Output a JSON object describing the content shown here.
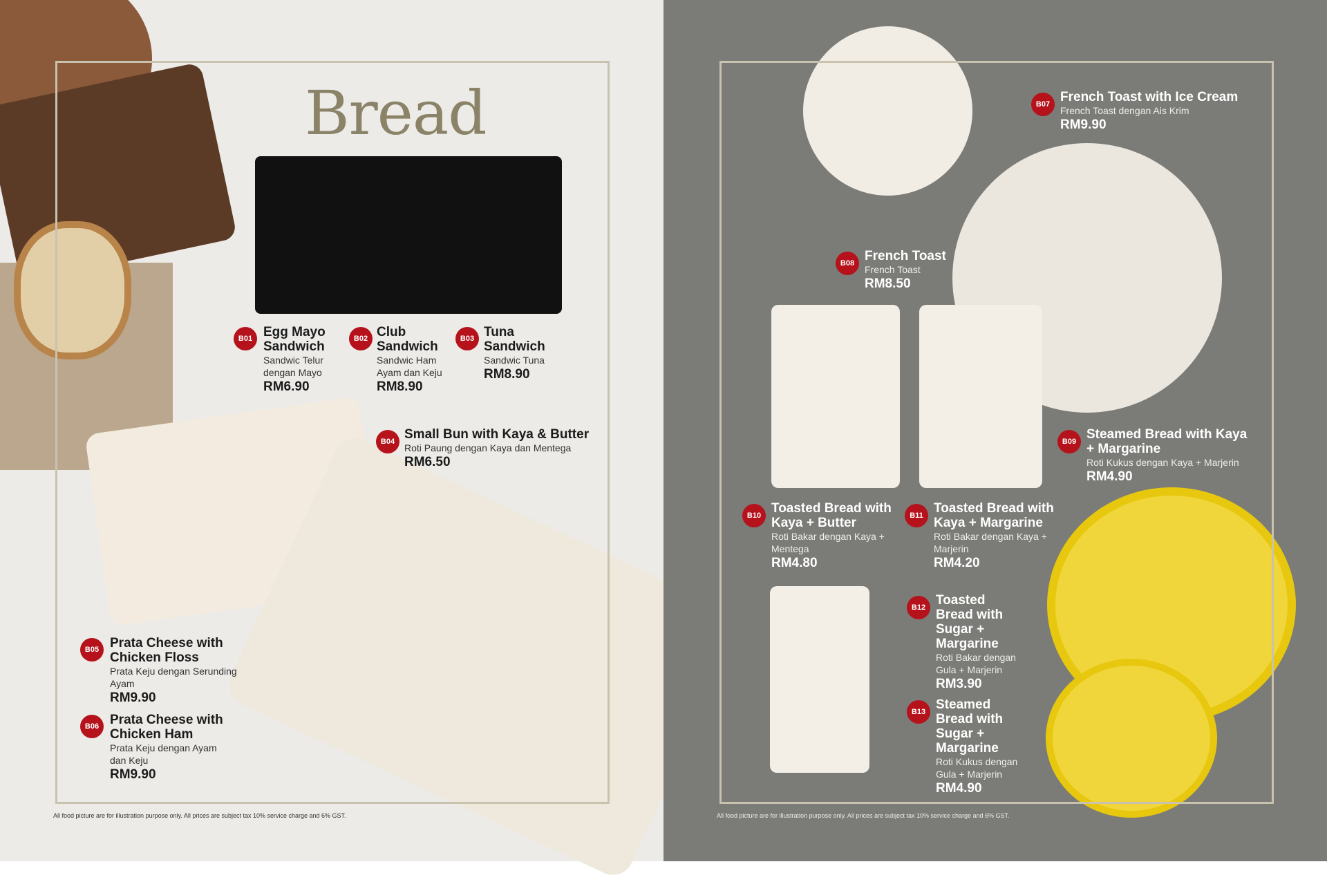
{
  "title": "Bread",
  "footnote": "All food picture are for illustration purpose only. All prices are subject tax 10% service charge and 6% GST.",
  "colors": {
    "badge": "#b5121b",
    "title": "#8a8368",
    "right_bg": "#7b7b77",
    "left_bg": "#ecebe7"
  },
  "items": [
    {
      "code": "B01",
      "name": "Egg Mayo Sandwich",
      "sub": "Sandwic Telur dengan Mayo",
      "price": "RM6.90"
    },
    {
      "code": "B02",
      "name": "Club Sandwich",
      "sub": "Sandwic Ham Ayam dan Keju",
      "price": "RM8.90"
    },
    {
      "code": "B03",
      "name": "Tuna Sandwich",
      "sub": "Sandwic Tuna",
      "price": "RM8.90"
    },
    {
      "code": "B04",
      "name": "Small Bun with Kaya & Butter",
      "sub": "Roti Paung dengan Kaya dan Mentega",
      "price": "RM6.50"
    },
    {
      "code": "B05",
      "name": "Prata Cheese with Chicken Floss",
      "sub": "Prata Keju dengan Serunding Ayam",
      "price": "RM9.90"
    },
    {
      "code": "B06",
      "name": "Prata Cheese with Chicken Ham",
      "sub": "Prata Keju dengan Ayam dan Keju",
      "price": "RM9.90"
    },
    {
      "code": "B07",
      "name": "French Toast with Ice Cream",
      "sub": "French Toast dengan Ais Krim",
      "price": "RM9.90"
    },
    {
      "code": "B08",
      "name": "French Toast",
      "sub": "French Toast",
      "price": "RM8.50"
    },
    {
      "code": "B09",
      "name": "Steamed Bread with Kaya + Margarine",
      "sub": "Roti Kukus dengan Kaya + Marjerin",
      "price": "RM4.90"
    },
    {
      "code": "B10",
      "name": "Toasted Bread with Kaya + Butter",
      "sub": "Roti Bakar dengan Kaya + Mentega",
      "price": "RM4.80"
    },
    {
      "code": "B11",
      "name": "Toasted Bread with Kaya + Margarine",
      "sub": "Roti Bakar dengan Kaya + Marjerin",
      "price": "RM4.20"
    },
    {
      "code": "B12",
      "name": "Toasted Bread with Sugar + Margarine",
      "sub": "Roti Bakar dengan Gula + Marjerin",
      "price": "RM3.90"
    },
    {
      "code": "B13",
      "name": "Steamed Bread with Sugar + Margarine",
      "sub": "Roti Kukus dengan Gula + Marjerin",
      "price": "RM4.90"
    }
  ]
}
